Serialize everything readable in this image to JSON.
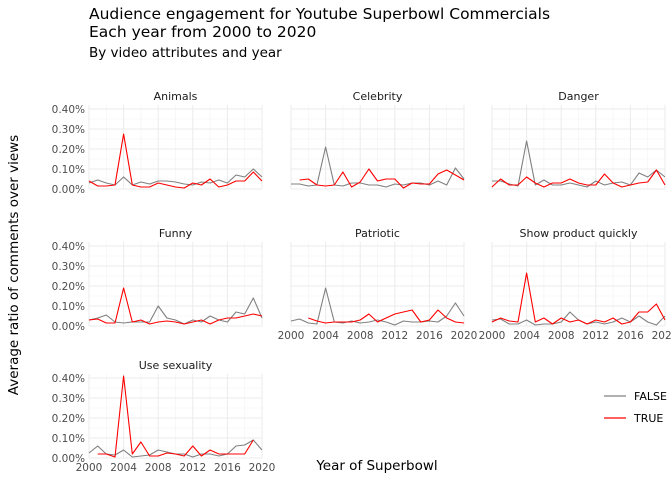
{
  "chart_data": {
    "type": "line",
    "title": "Audience engagement for Youtube Superbowl Commercials\nEach year from 2000 to 2020",
    "subtitle": "By video attributes and year",
    "xlabel": "Year of Superbowl",
    "ylabel": "Average ratio of comments over views",
    "xlim": [
      2000,
      2020
    ],
    "ylim": [
      0,
      0.0042
    ],
    "x_ticks": [
      2000,
      2004,
      2008,
      2012,
      2016,
      2020
    ],
    "y_ticks": [
      0,
      0.001,
      0.002,
      0.003,
      0.004
    ],
    "y_tick_labels": [
      "0.00%",
      "0.10%",
      "0.20%",
      "0.30%",
      "0.40%"
    ],
    "grid": true,
    "legend": {
      "placement": "right",
      "entries": [
        "FALSE",
        "TRUE"
      ]
    },
    "colors": {
      "FALSE": "#808080",
      "TRUE": "#ff0000"
    },
    "x": [
      2000,
      2001,
      2002,
      2003,
      2004,
      2005,
      2006,
      2007,
      2008,
      2009,
      2010,
      2011,
      2012,
      2013,
      2014,
      2015,
      2016,
      2017,
      2018,
      2019,
      2020
    ],
    "panels": [
      {
        "label": "Animals",
        "series": [
          {
            "name": "FALSE",
            "values": [
              0.0003,
              0.00045,
              0.0003,
              0.0002,
              0.0006,
              0.0002,
              0.00035,
              0.00025,
              0.0004,
              0.0004,
              0.00035,
              0.00025,
              0.0002,
              0.00035,
              0.0003,
              0.00045,
              0.0003,
              0.0007,
              0.0006,
              0.001,
              0.0006
            ]
          },
          {
            "name": "TRUE",
            "values": [
              0.0004,
              0.00015,
              0.00015,
              0.0002,
              0.00275,
              0.0002,
              0.0001,
              0.0001,
              0.0003,
              0.0002,
              0.0001,
              5e-05,
              0.0003,
              0.0002,
              0.0005,
              0.0001,
              0.0002,
              0.0004,
              0.0004,
              0.00085,
              0.0004
            ]
          }
        ]
      },
      {
        "label": "Celebrity",
        "series": [
          {
            "name": "FALSE",
            "values": [
              0.00025,
              0.00025,
              0.00015,
              0.0002,
              0.0021,
              0.0002,
              0.00015,
              0.0003,
              0.0003,
              0.0002,
              0.0002,
              0.0001,
              0.00025,
              0.0002,
              0.0003,
              0.0003,
              0.0002,
              0.0004,
              0.0002,
              0.00105,
              0.0005
            ]
          },
          {
            "name": "TRUE",
            "values": [
              null,
              0.00045,
              0.0005,
              0.0002,
              0.00015,
              0.0002,
              0.00085,
              0.0001,
              0.00035,
              0.001,
              0.0004,
              0.0005,
              0.0005,
              5e-05,
              0.0003,
              0.00025,
              0.00025,
              0.00075,
              0.00095,
              0.0007,
              0.00045
            ]
          }
        ]
      },
      {
        "label": "Danger",
        "series": [
          {
            "name": "FALSE",
            "values": [
              0.0004,
              0.0004,
              0.00025,
              0.00015,
              0.0024,
              0.0002,
              0.00045,
              0.0002,
              0.0002,
              0.0003,
              0.0002,
              0.0001,
              0.0004,
              0.0002,
              0.0003,
              0.00035,
              0.0002,
              0.0008,
              0.0006,
              0.00095,
              0.0006
            ]
          },
          {
            "name": "TRUE",
            "values": [
              0.0001,
              0.0005,
              0.0002,
              0.0002,
              0.0006,
              0.0003,
              0.0001,
              0.0003,
              0.0003,
              0.0005,
              0.0003,
              0.0002,
              0.0002,
              0.00075,
              0.0003,
              0.0001,
              0.0002,
              0.0003,
              0.00035,
              0.00095,
              0.0002
            ]
          }
        ]
      },
      {
        "label": "Funny",
        "series": [
          {
            "name": "FALSE",
            "values": [
              0.0003,
              0.0004,
              0.00055,
              0.0002,
              0.00015,
              0.0002,
              0.0002,
              0.0002,
              0.001,
              0.0004,
              0.0003,
              0.0001,
              0.0003,
              0.0002,
              0.0005,
              0.0003,
              0.0002,
              0.0007,
              0.0006,
              0.0014,
              0.0004
            ]
          },
          {
            "name": "TRUE",
            "values": [
              0.0003,
              0.00035,
              0.00015,
              0.00015,
              0.0019,
              0.0002,
              0.0003,
              0.0001,
              0.0002,
              0.00025,
              0.0002,
              0.0001,
              0.0002,
              0.0003,
              0.0001,
              0.0003,
              0.0004,
              0.0004,
              0.0005,
              0.0006,
              0.0005
            ]
          }
        ]
      },
      {
        "label": "Patriotic",
        "series": [
          {
            "name": "FALSE",
            "values": [
              0.00025,
              0.00035,
              0.00015,
              0.0001,
              0.0019,
              0.0002,
              0.00015,
              0.00025,
              0.00015,
              0.0002,
              0.0003,
              0.0002,
              5e-05,
              0.00025,
              0.0002,
              0.0002,
              0.00025,
              0.0002,
              0.0005,
              0.00115,
              0.0005
            ]
          },
          {
            "name": "TRUE",
            "values": [
              null,
              null,
              0.0004,
              0.00025,
              0.00015,
              0.0002,
              0.0002,
              0.0002,
              0.0003,
              0.0006,
              0.0002,
              0.0004,
              0.0006,
              0.0007,
              0.0008,
              0.0002,
              0.0003,
              0.0008,
              0.0004,
              0.0002,
              0.00015
            ]
          }
        ]
      },
      {
        "label": "Show product quickly",
        "series": [
          {
            "name": "FALSE",
            "values": [
              0.0003,
              0.00035,
              0.0001,
              0.0001,
              0.0003,
              5e-05,
              0.0001,
              0.0001,
              0.0002,
              0.0007,
              0.0003,
              0.0001,
              0.0002,
              0.0001,
              0.0002,
              0.0004,
              0.0002,
              0.0005,
              0.0002,
              5e-05,
              0.0005
            ]
          },
          {
            "name": "TRUE",
            "values": [
              0.0002,
              0.0004,
              0.00025,
              0.0002,
              0.00265,
              0.0002,
              0.0004,
              0.0001,
              0.0004,
              0.0002,
              0.0003,
              0.0001,
              0.0003,
              0.0002,
              0.0004,
              0.0001,
              0.0002,
              0.0007,
              0.0007,
              0.0011,
              0.0003
            ]
          }
        ]
      },
      {
        "label": "Use sexuality",
        "series": [
          {
            "name": "FALSE",
            "values": [
              0.00025,
              0.0006,
              0.0002,
              0.00015,
              0.0004,
              5e-05,
              0.0001,
              0.00015,
              0.0004,
              0.0003,
              0.0002,
              0.0002,
              5e-05,
              0.0002,
              0.0002,
              0.0001,
              0.0002,
              0.0006,
              0.00065,
              0.0009,
              0.0004
            ]
          },
          {
            "name": "TRUE",
            "values": [
              null,
              0.0002,
              0.0002,
              5e-05,
              0.0041,
              0.0002,
              0.0008,
              0.0001,
              0.0001,
              0.00025,
              0.0002,
              0.0001,
              0.0006,
              0.0001,
              0.0004,
              0.0002,
              0.0002,
              0.0002,
              0.0002,
              0.0009,
              null
            ]
          }
        ]
      }
    ]
  }
}
